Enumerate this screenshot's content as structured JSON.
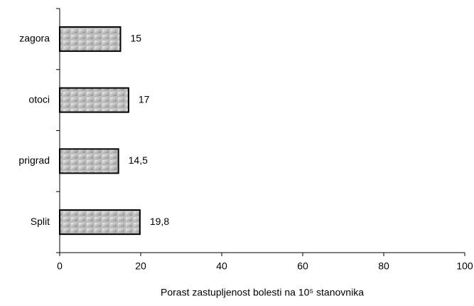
{
  "chart_data": {
    "type": "barh",
    "categories": [
      "zagora",
      "otoci",
      "prigrad",
      "Split"
    ],
    "values": [
      15,
      17,
      14.5,
      19.8
    ],
    "value_labels": [
      "15",
      "17",
      "14,5",
      "19,8"
    ],
    "color": "#c0c0c0",
    "xlim": [
      0,
      100
    ],
    "xticks": [
      0,
      20,
      40,
      60,
      80,
      100
    ],
    "xlabel": "Porast zastupljenost bolesti  na 10⁵ stanovnika"
  }
}
